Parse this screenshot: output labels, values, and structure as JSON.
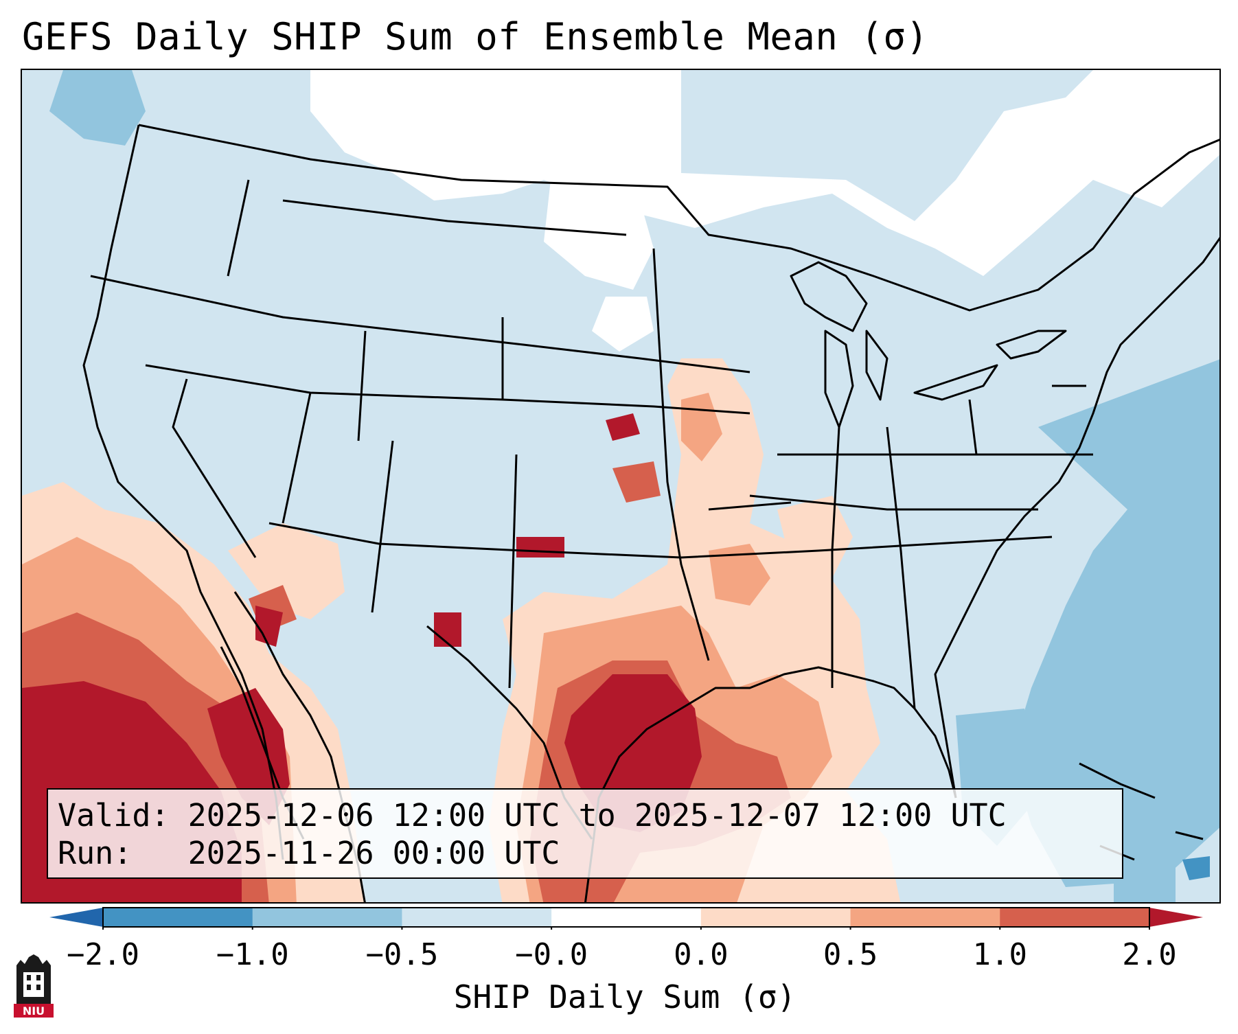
{
  "title": "GEFS Daily SHIP Sum of Ensemble Mean (σ)",
  "info": {
    "valid_label": "Valid:",
    "valid_value": "2025-12-06 12:00 UTC to 2025-12-07 12:00 UTC",
    "run_label": "Run:",
    "run_value": "2025-11-26 00:00 UTC"
  },
  "colorbar": {
    "label": "SHIP Daily Sum (σ)",
    "ticks": [
      "−2.0",
      "−1.0",
      "−0.5",
      "−0.0",
      "0.0",
      "0.5",
      "1.0",
      "2.0"
    ],
    "colors": [
      "#4393c3",
      "#92c5de",
      "#d1e5f0",
      "#ffffff",
      "#fddbc7",
      "#f4a582",
      "#d6604d"
    ],
    "under_color": "#2166ac",
    "over_color": "#b2182b"
  },
  "logo": {
    "text": "NIU"
  },
  "map": {
    "background": "#d1e5f0",
    "land_line_color": "#000000"
  }
}
